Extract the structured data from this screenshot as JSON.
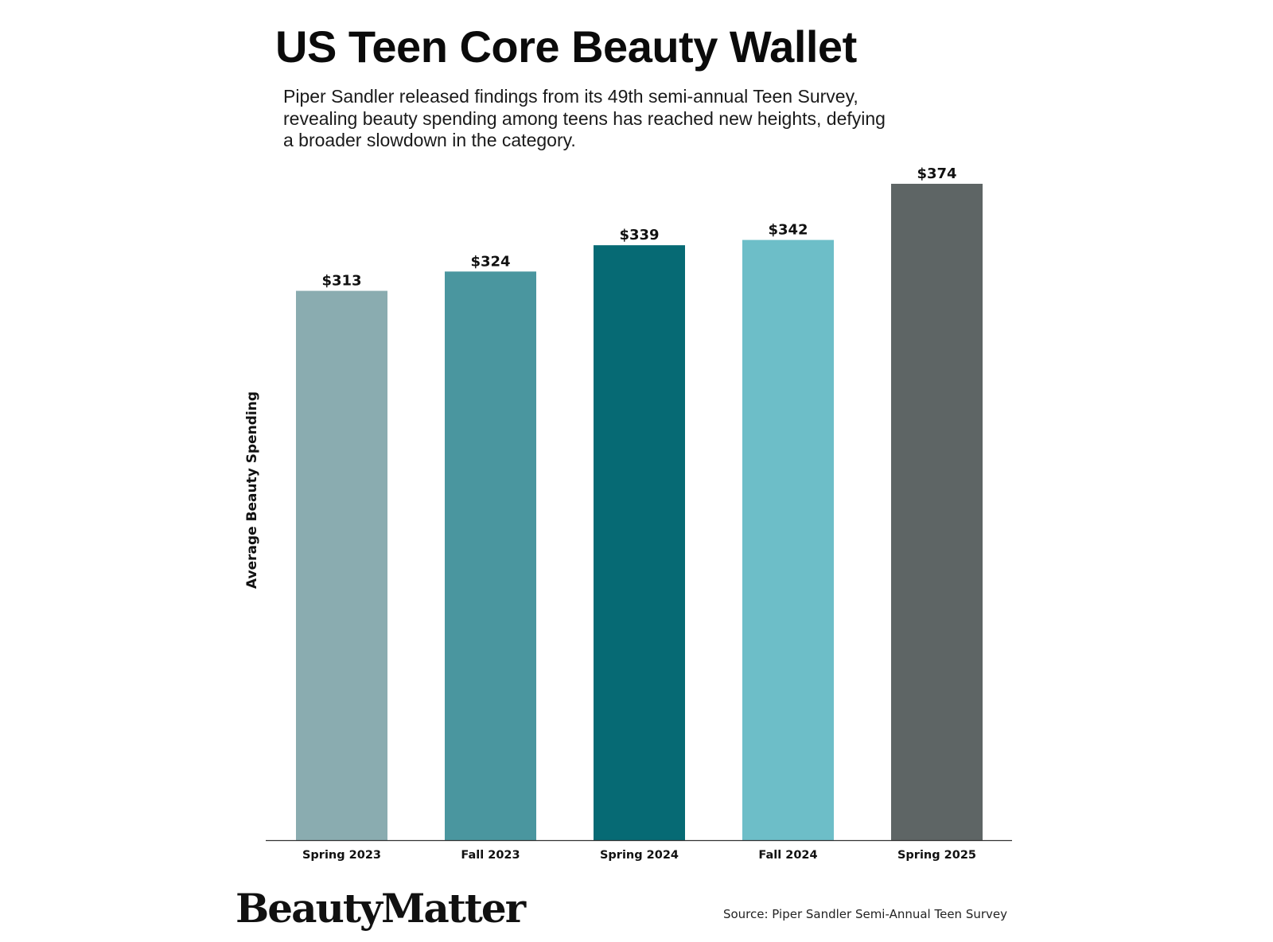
{
  "header": {
    "title": "US Teen Core Beauty Wallet",
    "subtitle_lines": [
      "Piper Sandler released findings from its 49th semi-annual Teen Survey,",
      "revealing beauty spending among teens has reached new heights, defying",
      "a broader slowdown in the category."
    ]
  },
  "chart_data": {
    "type": "bar",
    "title": "US Teen Core Beauty Wallet",
    "xlabel": "",
    "ylabel": "Average Beauty Spending",
    "categories": [
      "Spring 2023",
      "Fall 2023",
      "Spring 2024",
      "Fall 2024",
      "Spring 2025"
    ],
    "values": [
      313,
      324,
      339,
      342,
      374
    ],
    "value_labels": [
      "$313",
      "$324",
      "$339",
      "$342",
      "$374"
    ],
    "colors": [
      "#8aacb0",
      "#4a969f",
      "#066a74",
      "#6dbec8",
      "#5e6565"
    ],
    "ylim": [
      0,
      374
    ],
    "grid": false,
    "legend": "none"
  },
  "footer": {
    "logo_text": "BeautyMatter",
    "source": "Source: Piper Sandler Semi-Annual Teen Survey"
  }
}
